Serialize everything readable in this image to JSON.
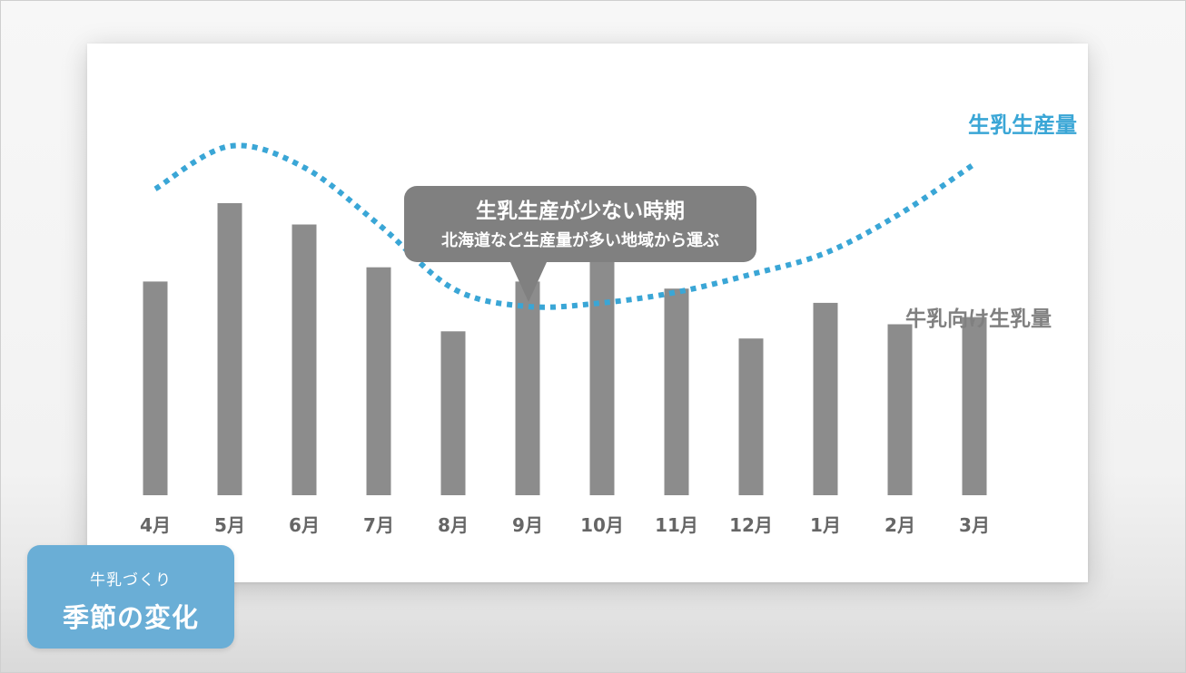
{
  "badge": {
    "subtitle": "牛乳づくり",
    "title": "季節の変化"
  },
  "callout": {
    "line1": "生乳生産が少ない時期",
    "line2": "北海道など生産量が多い地域から運ぶ"
  },
  "chart_data": {
    "type": "bar",
    "title": "",
    "xlabel": "",
    "ylabel": "",
    "categories": [
      "4月",
      "5月",
      "6月",
      "7月",
      "8月",
      "9月",
      "10月",
      "11月",
      "12月",
      "1月",
      "2月",
      "3月"
    ],
    "series": [
      {
        "name": "牛乳向け生乳量",
        "type": "bar",
        "color": "#8c8c8c",
        "values": [
          60,
          82,
          76,
          64,
          46,
          60,
          72,
          58,
          44,
          54,
          48,
          50
        ]
      },
      {
        "name": "生乳生産量",
        "type": "line",
        "style": "dotted",
        "color": "#3aa6d6",
        "values": [
          86,
          98,
          92,
          76,
          58,
          53,
          54,
          57,
          62,
          68,
          79,
          93
        ]
      }
    ],
    "ylim": [
      0,
      110
    ],
    "y_axis_shown": false,
    "grid": false
  }
}
